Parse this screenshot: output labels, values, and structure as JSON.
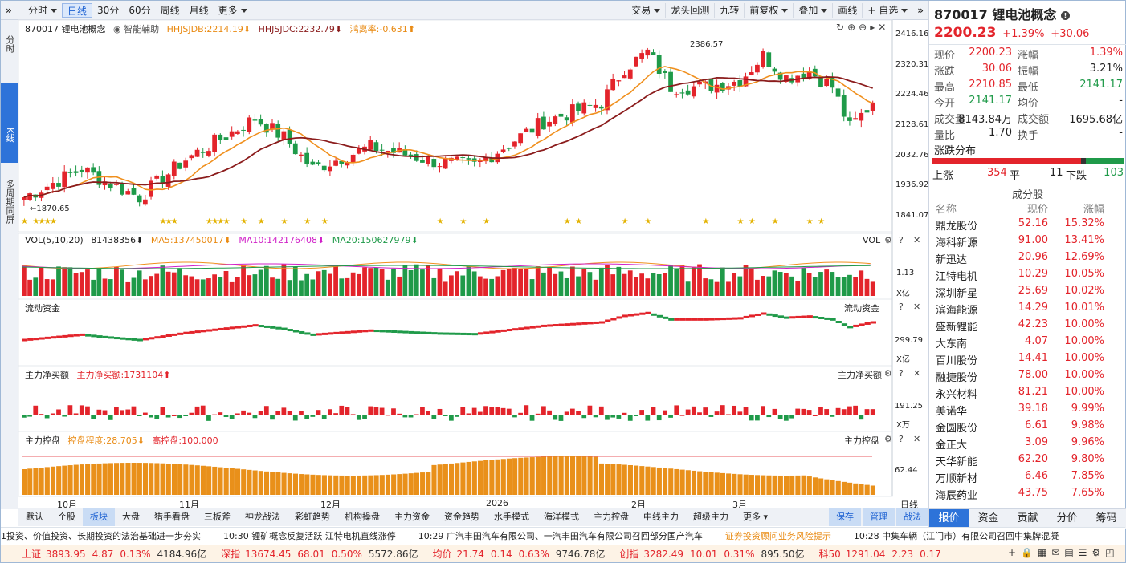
{
  "toolbar": {
    "menu_icon": "»",
    "items": [
      {
        "label": "分时",
        "caret": true
      },
      {
        "label": "日线",
        "active": true
      },
      {
        "label": "30分"
      },
      {
        "label": "60分"
      },
      {
        "label": "周线"
      },
      {
        "label": "月线"
      },
      {
        "label": "更多",
        "caret": true
      }
    ],
    "right": [
      {
        "label": "交易",
        "caret": true
      },
      {
        "label": "龙头回测"
      },
      {
        "label": "九转"
      },
      {
        "label": "前复权",
        "caret": true
      },
      {
        "label": "叠加",
        "caret": true
      },
      {
        "label": "画线"
      },
      {
        "label": "+ 自选",
        "caret": true
      }
    ],
    "collapse_icon": "»"
  },
  "side_tabs": [
    {
      "label": "分时"
    },
    {
      "label": "K线",
      "active": true
    },
    {
      "label": "多周期同屏"
    }
  ],
  "kline": {
    "code_name": "870017 锂电池概念",
    "assist": "智能辅助",
    "hhjsjdb": "HHJSJDB:2214.19⬇",
    "hhjsjdc": "HHJSJDC:2232.79⬇",
    "deviation": "鸿离率:-0.631⬆",
    "axis": [
      "2416.16",
      "2320.31",
      "2224.46",
      "2128.61",
      "2032.76",
      "1936.92",
      "1841.07"
    ],
    "max_label": "2386.57",
    "min_label": "1870.65"
  },
  "vol": {
    "title": "VOL(5,10,20)",
    "val": "81438356⬇",
    "ma5": "MA5:137450017⬇",
    "ma10": "MA10:142176408⬇",
    "ma20": "MA20:150627979⬇",
    "right_title": "VOL",
    "axis_val": "1.13",
    "unit": "X亿"
  },
  "flow": {
    "title": "流动资金",
    "right_title": "流动资金",
    "axis_val": "299.79",
    "unit": "X亿"
  },
  "netbuy": {
    "title": "主力净买额",
    "label": "主力净买额:1731104⬆",
    "right_title": "主力净买额",
    "axis_val": "191.25",
    "unit": "X万"
  },
  "control": {
    "title": "主力控盘",
    "degree": "控盘程度:28.705⬇",
    "high": "高控盘:100.000",
    "right_title": "主力控盘",
    "axis_val": "62.44"
  },
  "x_labels": [
    "10月",
    "11月",
    "12月",
    "2026",
    "2月",
    "3月"
  ],
  "period_label": "日线",
  "bottom_tabs": [
    {
      "label": "默认"
    },
    {
      "label": "个股"
    },
    {
      "label": "板块",
      "active": true
    },
    {
      "label": "大盘"
    },
    {
      "label": "猎手看盘"
    },
    {
      "label": "三板斧"
    },
    {
      "label": "神龙战法"
    },
    {
      "label": "彩虹趋势"
    },
    {
      "label": "机构操盘"
    },
    {
      "label": "主力资金"
    },
    {
      "label": "资金趋势"
    },
    {
      "label": "水手模式"
    },
    {
      "label": "海洋模式"
    },
    {
      "label": "主力控盘"
    },
    {
      "label": "中线主力"
    },
    {
      "label": "超级主力"
    },
    {
      "label": "更多 ▾"
    }
  ],
  "bottom_actions": [
    {
      "label": "保存"
    },
    {
      "label": "管理"
    },
    {
      "label": "战法"
    }
  ],
  "quote": {
    "title": "870017 锂电池概念",
    "price": "2200.23",
    "pct": "+1.39%",
    "chg": "+30.06",
    "rows": [
      [
        "现价",
        "2200.23",
        "涨幅",
        "1.39%"
      ],
      [
        "涨跌",
        "30.06",
        "振幅",
        "3.21%"
      ],
      [
        "最高",
        "2210.85",
        "最低",
        "2141.17"
      ],
      [
        "今开",
        "2141.17",
        "均价",
        "-"
      ],
      [
        "成交量",
        "8143.84万",
        "成交额",
        "1695.68亿"
      ],
      [
        "量比",
        "1.70",
        "换手",
        "-"
      ]
    ],
    "dist_title": "涨跌分布",
    "up_label": "上涨",
    "up": "354",
    "flat_label": "平",
    "flat": "11",
    "down_label": "下跌",
    "down": "103"
  },
  "components": {
    "title": "成分股",
    "headers": [
      "名称",
      "现价",
      "涨幅"
    ],
    "rows": [
      [
        "鼎龙股份",
        "52.16",
        "15.32%"
      ],
      [
        "海科新源",
        "91.00",
        "13.41%"
      ],
      [
        "新迅达",
        "20.96",
        "12.69%"
      ],
      [
        "江特电机",
        "10.29",
        "10.05%"
      ],
      [
        "深圳新星",
        "25.69",
        "10.02%"
      ],
      [
        "滨海能源",
        "14.29",
        "10.01%"
      ],
      [
        "盛新锂能",
        "42.23",
        "10.00%"
      ],
      [
        "大东南",
        "4.07",
        "10.00%"
      ],
      [
        "百川股份",
        "14.41",
        "10.00%"
      ],
      [
        "融捷股份",
        "78.00",
        "10.00%"
      ],
      [
        "永兴材料",
        "81.21",
        "10.00%"
      ],
      [
        "美诺华",
        "39.18",
        "9.99%"
      ],
      [
        "金圆股份",
        "6.61",
        "9.98%"
      ],
      [
        "金正大",
        "3.09",
        "9.96%"
      ],
      [
        "天华新能",
        "62.20",
        "9.80%"
      ],
      [
        "万顺新材",
        "6.46",
        "7.85%"
      ],
      [
        "海辰药业",
        "43.75",
        "7.65%"
      ]
    ]
  },
  "right_tabs": [
    {
      "label": "报价",
      "active": true
    },
    {
      "label": "资金"
    },
    {
      "label": "贡献"
    },
    {
      "label": "分价"
    },
    {
      "label": "筹码"
    }
  ],
  "news": [
    {
      "text": "1投资、价值投资、长期投资的法治基础进一步夯实"
    },
    {
      "text": "10:30 锂矿概念反复活跃 江特电机直线涨停"
    },
    {
      "text": "10:29 广汽丰田汽车有限公司、一汽丰田汽车有限公司召回部分国产汽车"
    },
    {
      "text": "证券投资顾问业务风险提示",
      "warn": true
    },
    {
      "text": "10:28 中集车辆（江门市）有限公司召回中集牌混凝"
    }
  ],
  "indices": [
    {
      "name": "上证",
      "val": "3893.95",
      "chg": "4.87",
      "pct": "0.13%",
      "amt": "4184.96亿"
    },
    {
      "name": "深指",
      "val": "13674.45",
      "chg": "68.01",
      "pct": "0.50%",
      "amt": "5572.86亿"
    },
    {
      "name": "均价",
      "val": "21.74",
      "chg": "0.14",
      "pct": "0.63%",
      "amt": "9746.78亿"
    },
    {
      "name": "创指",
      "val": "3282.49",
      "chg": "10.01",
      "pct": "0.31%",
      "amt": "895.50亿"
    },
    {
      "name": "科50",
      "val": "1291.04",
      "chg": "2.23",
      "pct": "0.17",
      "amt": ""
    }
  ],
  "colors": {
    "up": "#e3242b",
    "down": "#1f9a49",
    "ma_fast": "#f0901e",
    "ma_slow": "#8b1c1c",
    "control": "#e9901a"
  }
}
